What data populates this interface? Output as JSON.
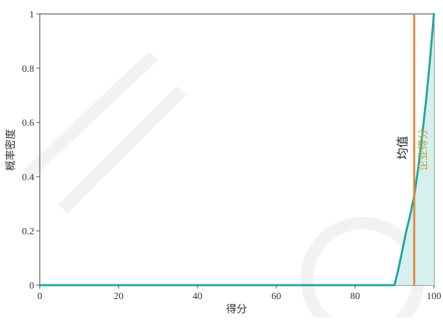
{
  "chart_data": {
    "type": "area",
    "xlabel": "得分",
    "ylabel": "概率密度",
    "xlim": [
      0,
      100
    ],
    "ylim": [
      0,
      1
    ],
    "x_ticks": [
      0,
      20,
      40,
      60,
      80,
      100
    ],
    "y_ticks": [
      0,
      0.2,
      0.4,
      0.6,
      0.8,
      1
    ],
    "grid": false,
    "series": [
      {
        "type": "area",
        "color": "#20a89c",
        "fill": "#d6f0ef",
        "x": [
          0,
          88,
          90,
          91,
          92,
          93,
          94,
          95,
          96,
          97,
          98,
          99,
          100
        ],
        "y": [
          0,
          0,
          0,
          0.06,
          0.13,
          0.2,
          0.26,
          0.33,
          0.43,
          0.55,
          0.68,
          0.83,
          1.0
        ]
      }
    ],
    "annotations": [
      {
        "type": "vline",
        "x": 95,
        "label": "均值",
        "color": "#e8873a",
        "label_color": "#222222"
      },
      {
        "type": "vline",
        "x": 100,
        "label": "企业得分",
        "color": "#b5a53a",
        "label_color": "#b5a53a"
      }
    ]
  }
}
